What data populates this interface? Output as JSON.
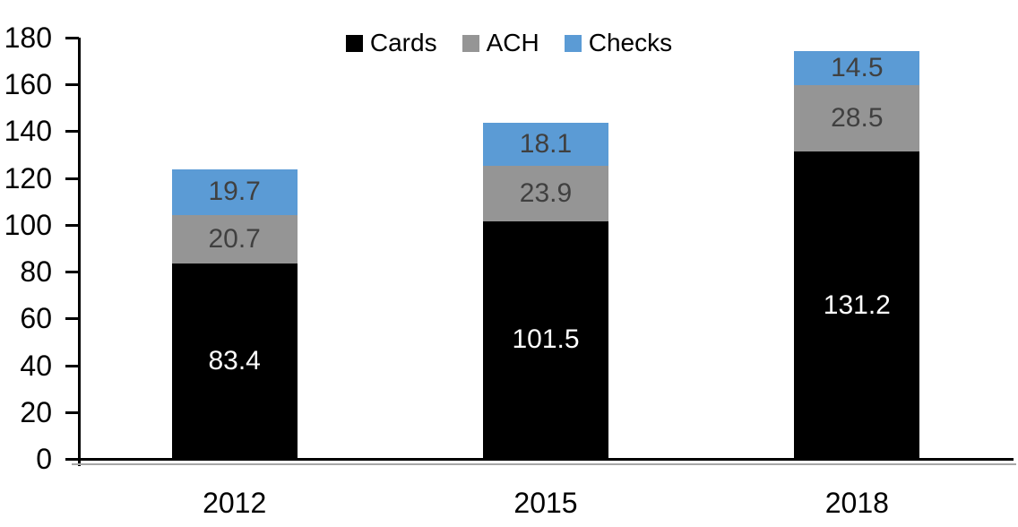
{
  "chart_data": {
    "type": "bar",
    "stacked": true,
    "title": "",
    "xlabel": "",
    "ylabel": "",
    "categories": [
      "2012",
      "2015",
      "2018"
    ],
    "series": [
      {
        "name": "Cards",
        "color": "#000000",
        "label_color": "#ffffff",
        "values": [
          83.4,
          101.5,
          131.2
        ]
      },
      {
        "name": "ACH",
        "color": "#959595",
        "label_color": "#404040",
        "values": [
          20.7,
          23.9,
          28.5
        ]
      },
      {
        "name": "Checks",
        "color": "#5b9bd5",
        "label_color": "#404040",
        "values": [
          19.7,
          18.1,
          14.5
        ]
      }
    ],
    "totals": [
      123.8,
      143.5,
      174.2
    ],
    "ylim": [
      0,
      180
    ],
    "yticks": [
      0,
      20,
      40,
      60,
      80,
      100,
      120,
      140,
      160,
      180
    ],
    "grid": false,
    "legend_position": "top",
    "axis_color": "#000000"
  }
}
